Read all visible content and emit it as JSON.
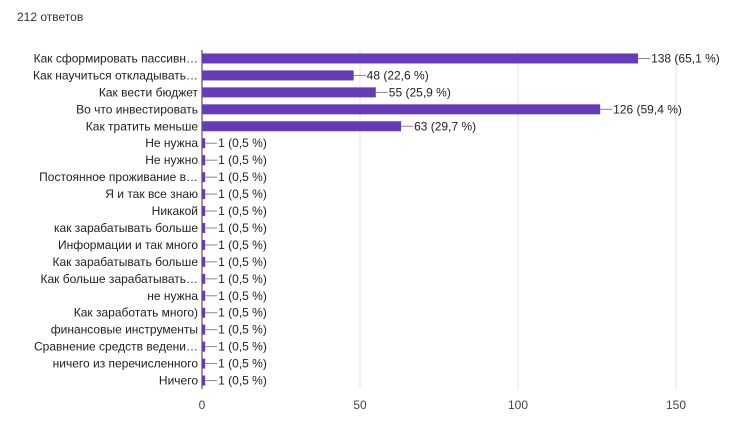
{
  "header": {
    "response_count": "212 ответов"
  },
  "colors": {
    "bar": "#673ab7",
    "grid": "#e6e6e6",
    "axis": "#333333",
    "leader": "#888888"
  },
  "chart_data": {
    "type": "bar",
    "orientation": "horizontal",
    "categories": [
      "Как сформировать пассивн…",
      "Как научиться откладывать…",
      "Как вести бюджет",
      "Во что инвестировать",
      "Как тратить меньше",
      "Не нужна",
      "Не нужно",
      "Постоянное проживание в…",
      "Я и так все знаю",
      "Никакой",
      "как зарабатывать больше",
      "Информации и так много",
      "Как зарабатывать больше",
      "Как больше зарабатывать…",
      "не нужна",
      "Как заработать много)",
      "финансовые инструменты",
      "Сравнение средств ведени…",
      "ничего из перечисленного",
      "Ничего"
    ],
    "values": [
      138,
      48,
      55,
      126,
      63,
      1,
      1,
      1,
      1,
      1,
      1,
      1,
      1,
      1,
      1,
      1,
      1,
      1,
      1,
      1
    ],
    "value_labels": [
      "138 (65,1 %)",
      "48 (22,6 %)",
      "55 (25,9 %)",
      "126 (59,4 %)",
      "63 (29,7 %)",
      "1 (0,5 %)",
      "1 (0,5 %)",
      "1 (0,5 %)",
      "1 (0,5 %)",
      "1 (0,5 %)",
      "1 (0,5 %)",
      "1 (0,5 %)",
      "1 (0,5 %)",
      "1 (0,5 %)",
      "1 (0,5 %)",
      "1 (0,5 %)",
      "1 (0,5 %)",
      "1 (0,5 %)",
      "1 (0,5 %)",
      "1 (0,5 %)"
    ],
    "xlim": [
      0,
      150
    ],
    "x_ticks": [
      0,
      50,
      100,
      150
    ],
    "grid": true
  }
}
